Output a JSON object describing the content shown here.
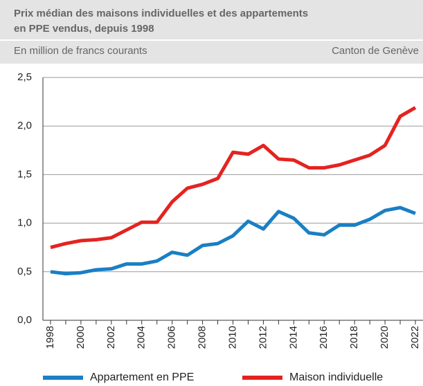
{
  "chart_data": {
    "type": "line",
    "title": [
      "Prix médian des maisons individuelles et des appartements",
      "en PPE vendus, depuis 1998"
    ],
    "subtitle": "En million de francs courants",
    "annotation": "Canton de Genève",
    "categories": [
      "1998",
      null,
      "2000",
      null,
      "2002",
      null,
      "2004",
      null,
      "2006",
      null,
      "2008",
      null,
      "2010",
      null,
      "2012",
      null,
      "2014",
      null,
      "2016",
      null,
      "2018",
      null,
      "2020",
      null,
      "2022"
    ],
    "series": [
      {
        "name": "Appartement en PPE",
        "color": "#1a7fc4",
        "values": [
          0.5,
          0.48,
          0.49,
          0.52,
          0.53,
          0.58,
          0.58,
          0.61,
          0.7,
          0.67,
          0.77,
          0.79,
          0.87,
          1.02,
          0.94,
          1.12,
          1.05,
          0.9,
          0.88,
          0.98,
          0.98,
          1.04,
          1.13,
          1.16,
          1.1
        ]
      },
      {
        "name": "Maison individuelle",
        "color": "#e42320",
        "values": [
          0.75,
          0.79,
          0.82,
          0.83,
          0.85,
          0.93,
          1.01,
          1.01,
          1.22,
          1.36,
          1.4,
          1.46,
          1.73,
          1.71,
          1.8,
          1.66,
          1.65,
          1.57,
          1.57,
          1.6,
          1.65,
          1.7,
          1.8,
          2.1,
          2.19
        ]
      }
    ],
    "ylim": [
      0,
      2.5
    ],
    "yticks": [
      {
        "value": 0,
        "label": "0,0"
      },
      {
        "value": 0.5,
        "label": "0,5"
      },
      {
        "value": 1,
        "label": "1,0"
      },
      {
        "value": 1.5,
        "label": "1,5"
      },
      {
        "value": 2,
        "label": "2,0"
      },
      {
        "value": 2.5,
        "label": "2,5"
      }
    ],
    "grid": true
  }
}
